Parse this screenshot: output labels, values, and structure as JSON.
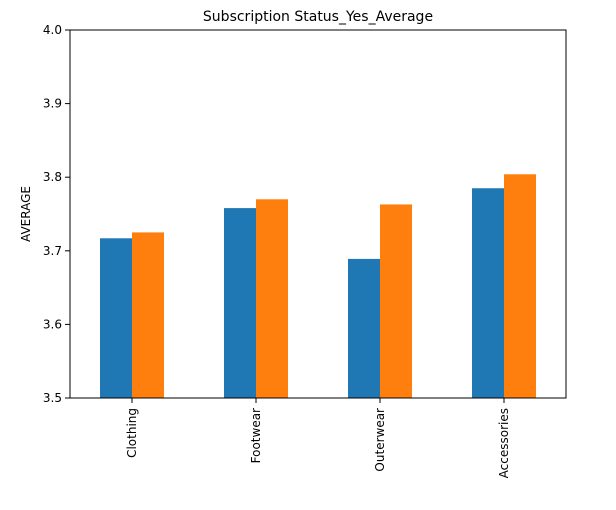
{
  "chart_data": {
    "type": "bar",
    "title": "Subscription Status_Yes_Average",
    "xlabel": "",
    "ylabel": "AVERAGE",
    "ylim": [
      3.5,
      4.0
    ],
    "yticks": [
      "3.5",
      "3.6",
      "3.7",
      "3.8",
      "3.9",
      "4.0"
    ],
    "categories": [
      "Clothing",
      "Footwear",
      "Outerwear",
      "Accessories"
    ],
    "series": [
      {
        "values": [
          3.717,
          3.758,
          3.689,
          3.785
        ],
        "color": "#1f77b4"
      },
      {
        "values": [
          3.725,
          3.77,
          3.763,
          3.804
        ],
        "color": "#ff7f0e"
      }
    ],
    "grid": false,
    "legend": "none"
  }
}
